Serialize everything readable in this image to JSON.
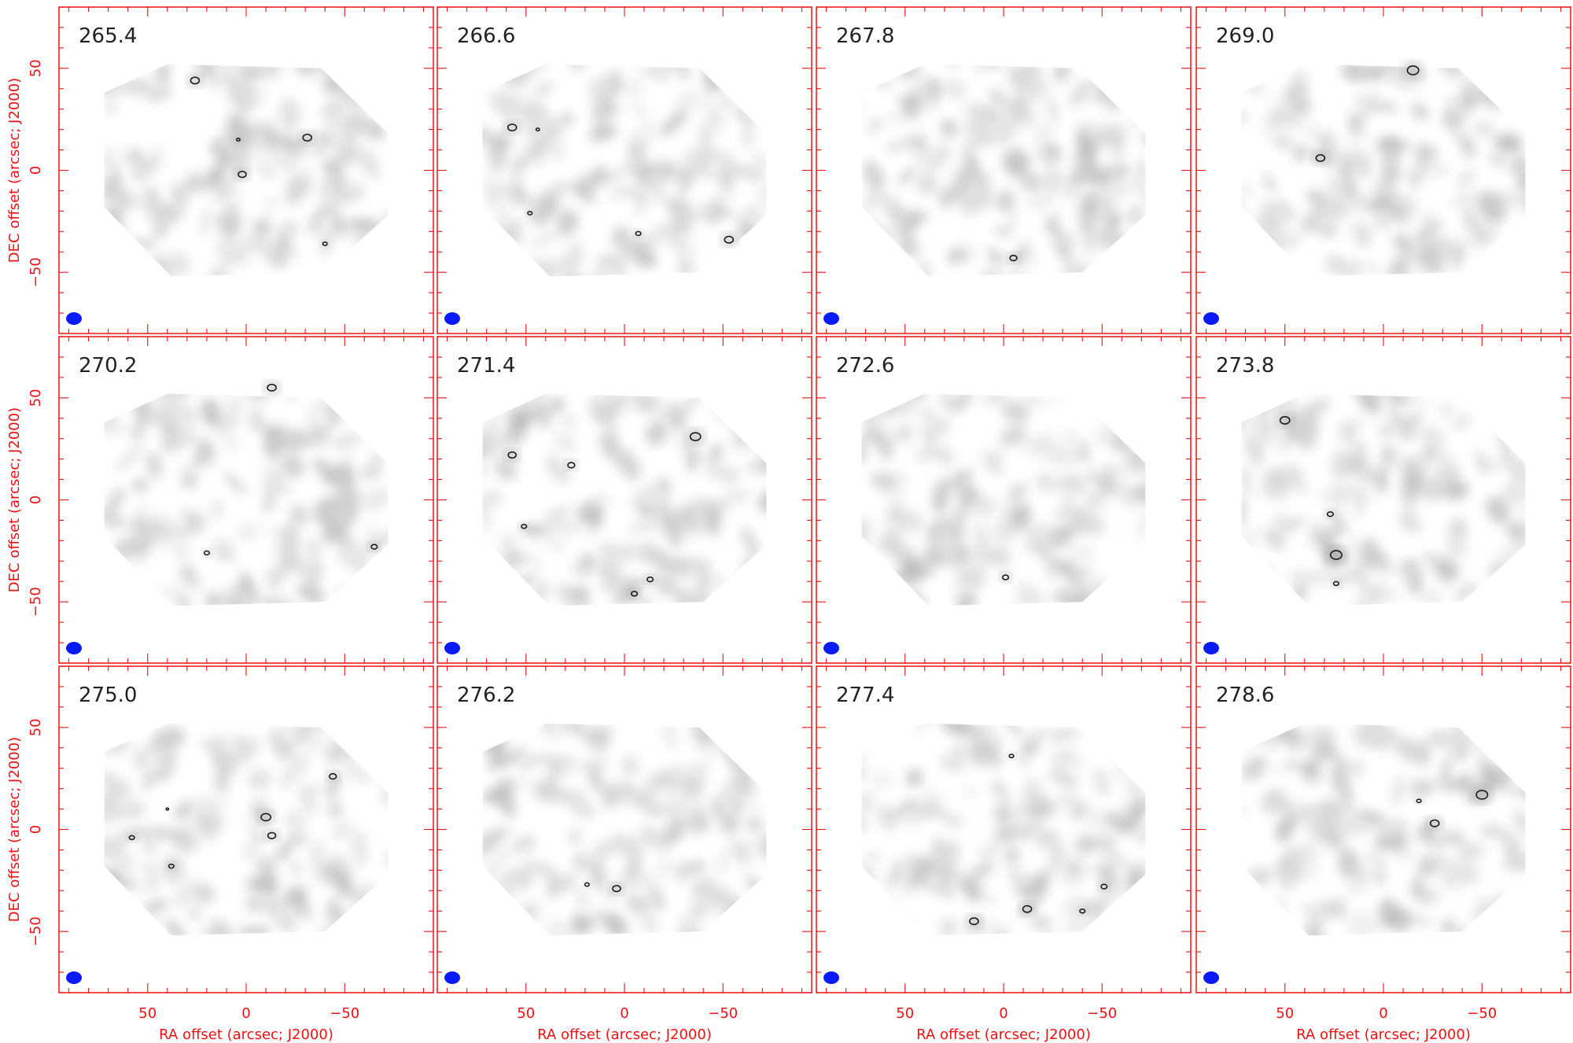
{
  "chart_data": {
    "type": "heatmap",
    "description_units": "RA/DEC offsets in arcsec (J2000); panel labels are channel values",
    "colors": {
      "axes": "#ee1111",
      "beam": "#0a1aff",
      "emission": "#9a9a9a",
      "contour": "#111111",
      "label": "#222222"
    },
    "axis": {
      "xlabel": "RA offset (arcsec; J2000)",
      "ylabel": "DEC offset (arcsec; J2000)",
      "xlim": [
        95,
        -95
      ],
      "ylim": [
        -80,
        80
      ],
      "xticks": [
        50,
        0,
        -50
      ],
      "xtick_labels": [
        "50",
        "0",
        "−50"
      ],
      "yticks": [
        50,
        0,
        -50
      ],
      "ytick_labels": [
        "50",
        "0",
        "−50"
      ]
    },
    "panels": [
      {
        "label": "265.4",
        "sources": [
          [
            26,
            44,
            1.0
          ],
          [
            -31,
            16,
            1.0
          ],
          [
            2,
            -2,
            0.9
          ],
          [
            -40,
            -36,
            0.5
          ],
          [
            4,
            15,
            0.4
          ]
        ]
      },
      {
        "label": "266.6",
        "sources": [
          [
            57,
            21,
            1.0
          ],
          [
            -53,
            -34,
            1.0
          ],
          [
            -7,
            -31,
            0.6
          ],
          [
            48,
            -21,
            0.5
          ],
          [
            44,
            20,
            0.4
          ]
        ]
      },
      {
        "label": "267.8",
        "sources": [
          [
            -5,
            -43,
            0.8
          ]
        ]
      },
      {
        "label": "269.0",
        "sources": [
          [
            -15,
            49,
            1.3
          ],
          [
            32,
            6,
            1.0
          ]
        ]
      },
      {
        "label": "270.2",
        "sources": [
          [
            -13,
            55,
            1.0
          ],
          [
            -65,
            -23,
            0.7
          ],
          [
            20,
            -26,
            0.6
          ]
        ]
      },
      {
        "label": "271.4",
        "sources": [
          [
            -36,
            31,
            1.2
          ],
          [
            57,
            22,
            0.9
          ],
          [
            27,
            17,
            0.8
          ],
          [
            -13,
            -39,
            0.7
          ],
          [
            -5,
            -46,
            0.7
          ],
          [
            51,
            -13,
            0.6
          ]
        ]
      },
      {
        "label": "272.6",
        "sources": [
          [
            -1,
            -38,
            0.7
          ]
        ]
      },
      {
        "label": "273.8",
        "sources": [
          [
            50,
            39,
            1.1
          ],
          [
            24,
            -27,
            1.3
          ],
          [
            27,
            -7,
            0.7
          ],
          [
            24,
            -41,
            0.6
          ]
        ]
      },
      {
        "label": "275.0",
        "sources": [
          [
            -10,
            6,
            1.1
          ],
          [
            -13,
            -3,
            0.9
          ],
          [
            -44,
            26,
            0.8
          ],
          [
            58,
            -4,
            0.6
          ],
          [
            38,
            -18,
            0.6
          ],
          [
            40,
            10,
            0.3
          ]
        ]
      },
      {
        "label": "276.2",
        "sources": [
          [
            4,
            -29,
            0.9
          ],
          [
            19,
            -27,
            0.5
          ]
        ]
      },
      {
        "label": "277.4",
        "sources": [
          [
            15,
            -45,
            1.0
          ],
          [
            -12,
            -39,
            1.0
          ],
          [
            -51,
            -28,
            0.7
          ],
          [
            -40,
            -40,
            0.6
          ],
          [
            -4,
            36,
            0.5
          ]
        ]
      },
      {
        "label": "278.6",
        "sources": [
          [
            -50,
            17,
            1.3
          ],
          [
            -26,
            3,
            1.0
          ],
          [
            -18,
            14,
            0.5
          ]
        ]
      }
    ]
  }
}
